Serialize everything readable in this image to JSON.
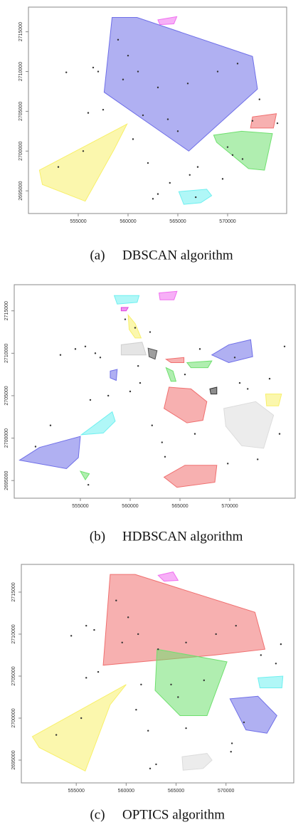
{
  "chart_data": [
    {
      "type": "scatter-hull",
      "label": "(a)",
      "caption": "DBSCAN algorithm",
      "xlim": [
        550000,
        575930
      ],
      "ylim": [
        2692150,
        2718100
      ],
      "xticks": [
        555000,
        560000,
        565000,
        570000
      ],
      "yticks": [
        2695000,
        2700000,
        2705000,
        2710000,
        2715000
      ],
      "hulls": [
        {
          "color": "#6f6fe8",
          "x": [
            558400,
            560900,
            572500,
            573000,
            566100,
            557600
          ],
          "y": [
            2716800,
            2716800,
            2711900,
            2707800,
            2700000,
            2707400
          ]
        },
        {
          "color": "#f06ff0",
          "x": [
            563000,
            564900,
            564600,
            563200
          ],
          "y": [
            2716500,
            2716900,
            2716000,
            2715900
          ]
        },
        {
          "color": "#f8f06a",
          "x": [
            551100,
            559900,
            558600,
            555700,
            551400
          ],
          "y": [
            2697600,
            2703400,
            2700200,
            2693700,
            2695800
          ]
        },
        {
          "color": "#6fe06f",
          "x": [
            568600,
            571400,
            574500,
            573700,
            572100,
            568900
          ],
          "y": [
            2702000,
            2702500,
            2702200,
            2697600,
            2697800,
            2701100
          ]
        },
        {
          "color": "#f07070",
          "x": [
            572500,
            574900,
            574600,
            572300
          ],
          "y": [
            2704300,
            2704700,
            2702900,
            2702900
          ]
        },
        {
          "color": "#6ff0f0",
          "x": [
            565100,
            567900,
            568400,
            567300,
            565600
          ],
          "y": [
            2694900,
            2695200,
            2694400,
            2693500,
            2693300
          ]
        }
      ],
      "points": {
        "x": [
          556500,
          557000,
          553800,
          557500,
          560500,
          562000,
          563000,
          562500,
          566200,
          567000,
          569500,
          571500,
          575000,
          573200,
          561500,
          564200,
          556000,
          570500,
          559000,
          560000,
          561000,
          563000,
          566000,
          569000,
          571000,
          564000,
          565000,
          559500,
          553000,
          555500,
          572500,
          570000,
          566800
        ],
        "y": [
          2710500,
          2710000,
          2709900,
          2705200,
          2701500,
          2698500,
          2694600,
          2694000,
          2697000,
          2698000,
          2696500,
          2699000,
          2703500,
          2706500,
          2704500,
          2696000,
          2704800,
          2699500,
          2714000,
          2712000,
          2710000,
          2708000,
          2708500,
          2710000,
          2711000,
          2704000,
          2702500,
          2709000,
          2698000,
          2700000,
          2703800,
          2700500,
          2694200
        ]
      }
    },
    {
      "type": "scatter-hull",
      "label": "(b)",
      "caption": "HDBSCAN algorithm",
      "xlim": [
        548360,
        576570
      ],
      "ylim": [
        2692920,
        2718080
      ],
      "xticks": [
        555000,
        560000,
        565000,
        570000
      ],
      "yticks": [
        2695000,
        2700000,
        2705000,
        2710000,
        2715000
      ],
      "hulls": [
        {
          "color": "#6ff0f0",
          "x": [
            558400,
            560900,
            560700,
            558700
          ],
          "y": [
            2716800,
            2716800,
            2716000,
            2715800
          ]
        },
        {
          "color": "#f06ff0",
          "x": [
            562900,
            564700,
            564400,
            563000
          ],
          "y": [
            2717100,
            2717300,
            2716300,
            2716300
          ]
        },
        {
          "color": "#e040e0",
          "x": [
            559100,
            559800,
            559600,
            559100
          ],
          "y": [
            2715400,
            2715400,
            2715000,
            2715000
          ]
        },
        {
          "color": "#f8f06a",
          "x": [
            559800,
            560500,
            561100,
            560500,
            559900
          ],
          "y": [
            2714500,
            2713500,
            2711800,
            2711800,
            2712800
          ]
        },
        {
          "color": "#cfcfcf",
          "x": [
            559100,
            561200,
            561600,
            559100
          ],
          "y": [
            2711000,
            2711300,
            2709800,
            2709800
          ]
        },
        {
          "color": "#505050",
          "x": [
            561800,
            562700,
            562500,
            561900
          ],
          "y": [
            2710600,
            2710300,
            2709300,
            2709600
          ]
        },
        {
          "color": "#f07070",
          "x": [
            563600,
            565400,
            565400,
            564100
          ],
          "y": [
            2709300,
            2709500,
            2708900,
            2708900
          ]
        },
        {
          "color": "#6fe06f",
          "x": [
            565700,
            568200,
            567800,
            566100
          ],
          "y": [
            2708900,
            2709100,
            2708300,
            2708300
          ]
        },
        {
          "color": "#6f6fe8",
          "x": [
            568200,
            569900,
            572100,
            572300,
            569900
          ],
          "y": [
            2709800,
            2711000,
            2711600,
            2709600,
            2708900
          ]
        },
        {
          "color": "#6fe06f",
          "x": [
            563600,
            564300,
            564600,
            564100
          ],
          "y": [
            2708300,
            2707900,
            2706700,
            2706700
          ]
        },
        {
          "color": "#6f6fe8",
          "x": [
            558000,
            558700,
            558600,
            558000
          ],
          "y": [
            2707900,
            2708100,
            2706800,
            2707100
          ]
        },
        {
          "color": "#303030",
          "x": [
            568000,
            568700,
            568700,
            568100
          ],
          "y": [
            2705800,
            2706000,
            2705200,
            2705200
          ]
        },
        {
          "color": "#f07070",
          "x": [
            563900,
            566100,
            567700,
            567300,
            565700,
            563400
          ],
          "y": [
            2706000,
            2705800,
            2704300,
            2702100,
            2701800,
            2703500
          ]
        },
        {
          "color": "#f8f06a",
          "x": [
            573600,
            575200,
            574900,
            573700
          ],
          "y": [
            2705200,
            2705200,
            2703800,
            2703800
          ]
        },
        {
          "color": "#dcdcdc",
          "x": [
            569400,
            572600,
            574400,
            573400,
            571200,
            569600
          ],
          "y": [
            2703500,
            2704300,
            2702700,
            2698800,
            2699100,
            2701400
          ]
        },
        {
          "color": "#6ff0f0",
          "x": [
            555100,
            558200,
            558500,
            557300
          ],
          "y": [
            2700400,
            2703100,
            2702000,
            2700600
          ]
        },
        {
          "color": "#6f6fe8",
          "x": [
            548900,
            550900,
            555000,
            554800,
            553600
          ],
          "y": [
            2697400,
            2698900,
            2700200,
            2697700,
            2696400
          ]
        },
        {
          "color": "#6fe06f",
          "x": [
            555000,
            555900,
            555500
          ],
          "y": [
            2696100,
            2695800,
            2695100
          ]
        },
        {
          "color": "#f07070",
          "x": [
            563400,
            565500,
            568700,
            568500,
            564700
          ],
          "y": [
            2695400,
            2696800,
            2696800,
            2694800,
            2694200
          ]
        }
      ],
      "points": {
        "x": [
          554500,
          555500,
          556500,
          557000,
          553000,
          557800,
          561000,
          562200,
          563200,
          566500,
          569800,
          572800,
          575500,
          574000,
          560500,
          562000,
          556000,
          571000,
          559500,
          560800,
          565500,
          567000,
          570500,
          552000,
          550500,
          555800,
          560000,
          563500,
          571800,
          575000
        ],
        "y": [
          2710500,
          2710800,
          2710000,
          2709500,
          2709800,
          2705000,
          2706500,
          2701500,
          2699500,
          2700500,
          2697000,
          2697500,
          2710800,
          2707000,
          2713000,
          2712500,
          2704500,
          2706500,
          2714000,
          2708500,
          2707500,
          2710500,
          2709500,
          2701500,
          2699000,
          2694500,
          2705500,
          2697800,
          2705800,
          2700500
        ]
      }
    },
    {
      "type": "scatter-hull",
      "label": "(c)",
      "caption": "OPTICS algorithm",
      "xlim": [
        549500,
        576790
      ],
      "ylim": [
        2692290,
        2718300
      ],
      "xticks": [
        555000,
        560000,
        565000,
        570000
      ],
      "yticks": [
        2695000,
        2700000,
        2705000,
        2710000,
        2715000
      ],
      "hulls": [
        {
          "color": "#f07070",
          "x": [
            558400,
            560900,
            572900,
            573900,
            568800,
            557700
          ],
          "y": [
            2717100,
            2717100,
            2712600,
            2708200,
            2707500,
            2706300
          ]
        },
        {
          "color": "#f06ff0",
          "x": [
            563200,
            564700,
            565200,
            563800
          ],
          "y": [
            2717000,
            2717400,
            2716400,
            2716300
          ]
        },
        {
          "color": "#6fe06f",
          "x": [
            563100,
            570100,
            568100,
            565400,
            562900
          ],
          "y": [
            2708200,
            2706700,
            2700300,
            2700300,
            2703300
          ]
        },
        {
          "color": "#f8f06a",
          "x": [
            550600,
            560000,
            558400,
            555900,
            551300
          ],
          "y": [
            2697800,
            2704000,
            2701600,
            2693700,
            2696500
          ]
        },
        {
          "color": "#6ff0f0",
          "x": [
            573200,
            575700,
            575600,
            573400
          ],
          "y": [
            2704800,
            2705000,
            2703600,
            2703600
          ]
        },
        {
          "color": "#6f6fe8",
          "x": [
            570400,
            573200,
            575100,
            574100,
            572000
          ],
          "y": [
            2702300,
            2702600,
            2700300,
            2698200,
            2698600
          ]
        },
        {
          "color": "#dcdcdc",
          "x": [
            565600,
            568100,
            568600,
            567700,
            565700
          ],
          "y": [
            2695400,
            2695800,
            2695000,
            2694000,
            2693800
          ]
        }
      ],
      "points": {
        "x": [
          556000,
          556800,
          554500,
          557200,
          561000,
          562200,
          563000,
          562400,
          570500,
          571800,
          575500,
          573500,
          561500,
          556000,
          570600,
          559000,
          560200,
          561200,
          563200,
          566000,
          569000,
          571000,
          564500,
          565200,
          559600,
          553000,
          555500,
          575000,
          566000,
          567800
        ],
        "y": [
          2711000,
          2710500,
          2709800,
          2705500,
          2701000,
          2698500,
          2694500,
          2694000,
          2696000,
          2699500,
          2708800,
          2707500,
          2704000,
          2704800,
          2697000,
          2714000,
          2712000,
          2710000,
          2708200,
          2709000,
          2710000,
          2711000,
          2704000,
          2702500,
          2709000,
          2698000,
          2700000,
          2706500,
          2698800,
          2704500
        ]
      }
    }
  ]
}
